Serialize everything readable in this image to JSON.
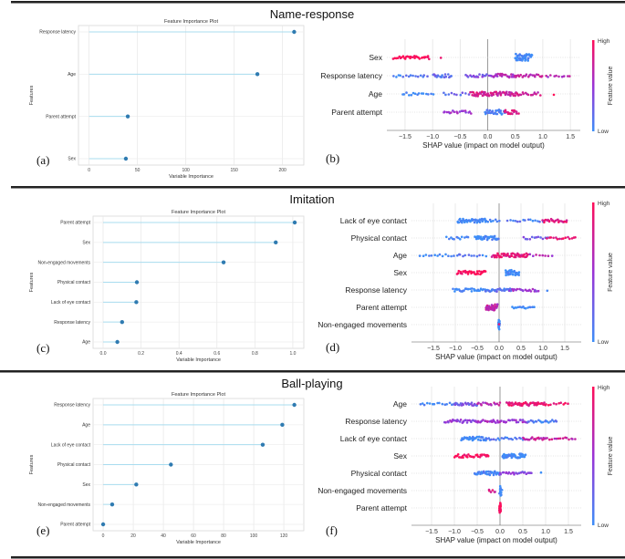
{
  "sections": [
    {
      "title": "Name-response"
    },
    {
      "title": "Imitation"
    },
    {
      "title": "Ball-playing"
    }
  ],
  "panel_letters": [
    "(a)",
    "(b)",
    "(c)",
    "(d)",
    "(e)",
    "(f)"
  ],
  "colors": {
    "lollipop_line": "#a8dcef",
    "lollipop_dot": "#2f7bb1",
    "shap_low": "#3d8ef8",
    "shap_mid": "#9a33d6",
    "shap_high": "#ff0d57"
  },
  "chart_data": [
    {
      "id": "a",
      "type": "lollipop",
      "title": "Feature Importance Plot",
      "xlabel": "Variable Importance",
      "ylabel": "Features",
      "categories": [
        "Response latency",
        "Age",
        "Parent attempt",
        "Sex"
      ],
      "values": [
        212,
        174,
        40,
        38
      ],
      "xlim": [
        -11,
        222
      ],
      "xticks": [
        0,
        50,
        100,
        150,
        200
      ],
      "tick_labels": [
        "0",
        "50",
        "100",
        "150",
        "200"
      ],
      "grid": true
    },
    {
      "id": "b",
      "type": "scatter",
      "subtype": "shap-beeswarm",
      "xlabel": "SHAP value (impact on model output)",
      "colorbar": {
        "label": "Feature value",
        "high": "High",
        "low": "Low"
      },
      "xlim": [
        -1.83,
        1.68
      ],
      "xticks": [
        -1.5,
        -1.0,
        -0.5,
        0.0,
        0.5,
        1.0,
        1.5
      ],
      "tick_labels": [
        "−1.5",
        "−1.0",
        "−0.5",
        "0.0",
        "0.5",
        "1.0",
        "1.5"
      ],
      "features": [
        {
          "name": "Sex",
          "clusters": [
            [
              -1.7,
              -1.05,
              1,
              30
            ],
            [
              -0.85,
              -0.85,
              1,
              1
            ],
            [
              0.5,
              0.8,
              0,
              50
            ]
          ]
        },
        {
          "name": "Response latency",
          "clusters": [
            [
              -1.7,
              -1.1,
              0.1,
              15
            ],
            [
              -1.0,
              -0.65,
              0.2,
              20
            ],
            [
              -0.4,
              0.1,
              0.35,
              20
            ],
            [
              0.1,
              0.5,
              0.6,
              25
            ],
            [
              0.5,
              1.0,
              0.7,
              20
            ],
            [
              1.05,
              1.5,
              0.6,
              10
            ]
          ]
        },
        {
          "name": "Age",
          "clusters": [
            [
              -1.55,
              -1.0,
              0,
              15
            ],
            [
              -0.8,
              -0.35,
              0.2,
              10
            ],
            [
              -0.3,
              0.0,
              0.8,
              25
            ],
            [
              0.0,
              0.55,
              0.75,
              40
            ],
            [
              0.55,
              0.95,
              0.75,
              15
            ],
            [
              1.2,
              1.2,
              1,
              1
            ]
          ]
        },
        {
          "name": "Parent attempt",
          "clusters": [
            [
              -0.8,
              -0.3,
              0.5,
              18
            ],
            [
              -0.05,
              0.3,
              0.05,
              35
            ],
            [
              0.3,
              0.55,
              0.85,
              18
            ]
          ]
        }
      ]
    },
    {
      "id": "c",
      "type": "lollipop",
      "title": "Feature Importance Plot",
      "xlabel": "Variable Importance",
      "ylabel": "Features",
      "categories": [
        "Parent attempt",
        "Sex",
        "Non-engaged movements",
        "Physical contact",
        "Lack of eye contact",
        "Response latency",
        "Age"
      ],
      "values": [
        1.01,
        0.91,
        0.635,
        0.178,
        0.175,
        0.1,
        0.075
      ],
      "xlim": [
        -0.053,
        1.058
      ],
      "xticks": [
        0,
        0.2,
        0.4,
        0.6,
        0.8,
        1.0
      ],
      "tick_labels": [
        "0.0",
        "0.2",
        "0.4",
        "0.6",
        "0.8",
        "1.0"
      ],
      "grid": true
    },
    {
      "id": "d",
      "type": "scatter",
      "subtype": "shap-beeswarm",
      "xlabel": "SHAP value (impact on model output)",
      "colorbar": {
        "label": "Feature value",
        "high": "High",
        "low": "Low"
      },
      "xlim": [
        -2.0,
        1.875
      ],
      "xticks": [
        -1.5,
        -1.0,
        -0.5,
        0.0,
        0.5,
        1.0,
        1.5
      ],
      "tick_labels": [
        "−1.5",
        "−1.0",
        "−0.5",
        "0.0",
        "0.5",
        "1.0",
        "1.5"
      ],
      "features": [
        {
          "name": "Lack of eye contact",
          "clusters": [
            [
              -0.95,
              -0.3,
              0,
              45
            ],
            [
              -0.3,
              0.0,
              0,
              8
            ],
            [
              0.2,
              1.0,
              0.1,
              15
            ],
            [
              1.0,
              1.55,
              0.85,
              25
            ]
          ]
        },
        {
          "name": "Physical contact",
          "clusters": [
            [
              -1.2,
              -0.7,
              0,
              12
            ],
            [
              -0.55,
              0.0,
              0,
              40
            ],
            [
              0.55,
              1.1,
              0.3,
              12
            ],
            [
              1.1,
              1.75,
              0.85,
              15
            ]
          ]
        },
        {
          "name": "Age",
          "clusters": [
            [
              -1.8,
              -0.9,
              0,
              15
            ],
            [
              -0.9,
              -0.3,
              0.1,
              10
            ],
            [
              -0.15,
              0.65,
              0.85,
              55
            ],
            [
              0.7,
              1.2,
              0.6,
              8
            ]
          ]
        },
        {
          "name": "Sex",
          "clusters": [
            [
              -0.95,
              -0.3,
              1,
              35
            ],
            [
              0.15,
              0.45,
              0,
              35
            ]
          ]
        },
        {
          "name": "Response latency",
          "clusters": [
            [
              -1.05,
              -0.3,
              0,
              30
            ],
            [
              -0.3,
              0.3,
              0.15,
              30
            ],
            [
              0.25,
              0.9,
              0.5,
              20
            ],
            [
              1.1,
              1.1,
              0,
              1
            ]
          ]
        },
        {
          "name": "Parent attempt",
          "clusters": [
            [
              -0.3,
              -0.05,
              0.65,
              35
            ],
            [
              0.3,
              0.8,
              0,
              15
            ]
          ]
        },
        {
          "name": "Non-engaged movements",
          "clusters": [
            [
              0.0,
              0.0,
              0,
              20
            ],
            [
              0.0,
              0.0,
              1,
              1
            ]
          ]
        }
      ]
    },
    {
      "id": "e",
      "type": "lollipop",
      "title": "Feature Importance Plot",
      "xlabel": "Variable Importance",
      "ylabel": "Features",
      "categories": [
        "Response latency",
        "Age",
        "Lack of eye contact",
        "Physical contact",
        "Sex",
        "Non-engaged movements",
        "Parent attempt"
      ],
      "values": [
        127,
        119,
        106,
        45,
        22,
        6,
        0
      ],
      "xlim": [
        -6.7,
        133.3
      ],
      "xticks": [
        0,
        20,
        40,
        60,
        80,
        100,
        120
      ],
      "tick_labels": [
        "0",
        "20",
        "40",
        "60",
        "80",
        "100",
        "120"
      ],
      "grid": true
    },
    {
      "id": "f",
      "type": "scatter",
      "subtype": "shap-beeswarm",
      "xlabel": "SHAP value (impact on model output)",
      "colorbar": {
        "label": "Feature value",
        "high": "High",
        "low": "Low"
      },
      "xlim": [
        -1.94,
        1.78
      ],
      "xticks": [
        -1.5,
        -1.0,
        -0.5,
        0.0,
        0.5,
        1.0,
        1.5
      ],
      "tick_labels": [
        "−1.5",
        "−1.0",
        "−0.5",
        "0.0",
        "0.5",
        "1.0",
        "1.5"
      ],
      "features": [
        {
          "name": "Age",
          "clusters": [
            [
              -1.75,
              -1.0,
              0,
              15
            ],
            [
              -1.0,
              -0.5,
              0.3,
              25
            ],
            [
              -0.5,
              0.0,
              0.65,
              15
            ],
            [
              0.15,
              1.0,
              0.9,
              50
            ],
            [
              1.0,
              1.5,
              0.95,
              10
            ]
          ]
        },
        {
          "name": "Response latency",
          "clusters": [
            [
              -1.2,
              -0.5,
              0.45,
              30
            ],
            [
              -0.5,
              0.15,
              0.55,
              25
            ],
            [
              0.2,
              0.6,
              0.5,
              15
            ],
            [
              0.6,
              1.25,
              0.1,
              20
            ]
          ]
        },
        {
          "name": "Lack of eye contact",
          "clusters": [
            [
              -0.85,
              -0.3,
              0,
              40
            ],
            [
              -0.3,
              0.5,
              0.1,
              20
            ],
            [
              0.5,
              1.0,
              0.7,
              20
            ],
            [
              1.0,
              1.65,
              0.7,
              15
            ]
          ]
        },
        {
          "name": "Sex",
          "clusters": [
            [
              -1.0,
              -0.25,
              1,
              35
            ],
            [
              0.05,
              0.55,
              0,
              45
            ]
          ]
        },
        {
          "name": "Physical contact",
          "clusters": [
            [
              -0.55,
              0.0,
              0.05,
              40
            ],
            [
              0.0,
              0.7,
              0.4,
              25
            ],
            [
              0.9,
              0.9,
              0,
              1
            ]
          ]
        },
        {
          "name": "Non-engaged movements",
          "clusters": [
            [
              -0.25,
              -0.1,
              0.8,
              6
            ],
            [
              0.0,
              0.03,
              0,
              15
            ]
          ]
        },
        {
          "name": "Parent attempt",
          "clusters": [
            [
              0.0,
              0.0,
              1,
              20
            ]
          ]
        }
      ]
    }
  ]
}
